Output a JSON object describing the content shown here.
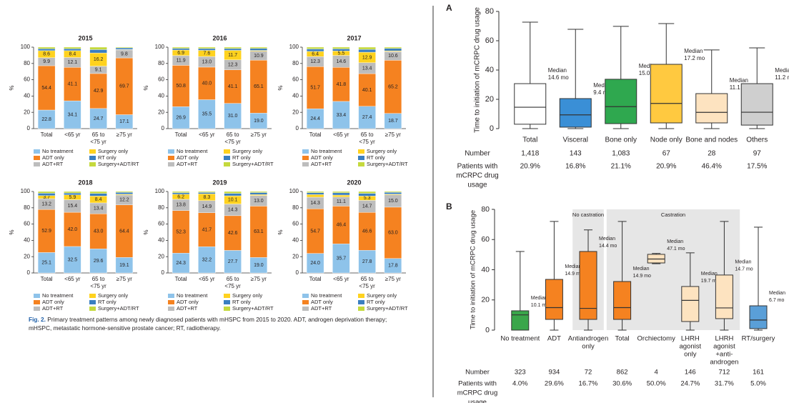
{
  "chart_data": [
    {
      "type": "bar",
      "stacked": true,
      "title": "2015",
      "ylabel": "%",
      "categories": [
        [
          "Total"
        ],
        [
          "<65 yr"
        ],
        [
          "65 to",
          "<75 yr"
        ],
        [
          "≥75 yr"
        ]
      ],
      "ylim": [
        0,
        100
      ],
      "yticks": [
        0,
        20,
        40,
        60,
        80,
        100
      ],
      "series": [
        {
          "name": "No treatment",
          "color": "#8ec3ea",
          "show_labels": true,
          "values": [
            22.8,
            34.1,
            24.7,
            17.1
          ]
        },
        {
          "name": "ADT only",
          "color": "#f58220",
          "show_labels": true,
          "values": [
            54.4,
            41.1,
            42.9,
            69.7
          ]
        },
        {
          "name": "ADT+RT",
          "color": "#bdbdbd",
          "show_labels": true,
          "values": [
            9.9,
            12.1,
            9.1,
            9.8
          ]
        },
        {
          "name": "Surgery only",
          "color": "#ffd21f",
          "show_labels": true,
          "values": [
            8.6,
            8.4,
            16.2,
            0.5
          ]
        },
        {
          "name": "RT only",
          "color": "#3a7fc1",
          "values": [
            2.3,
            2.4,
            4.1,
            2.0
          ]
        },
        {
          "name": "Surgery+ADT/RT",
          "color": "#c5d93d",
          "values": [
            2.0,
            1.9,
            3.0,
            0.9
          ]
        }
      ]
    },
    {
      "type": "bar",
      "stacked": true,
      "title": "2016",
      "ylabel": "%",
      "categories": [
        [
          "Total"
        ],
        [
          "<65 yr"
        ],
        [
          "65 to",
          "<75 yr"
        ],
        [
          "≥75 yr"
        ]
      ],
      "ylim": [
        0,
        100
      ],
      "yticks": [
        0,
        20,
        40,
        60,
        80,
        100
      ],
      "series": [
        {
          "name": "No treatment",
          "color": "#8ec3ea",
          "show_labels": true,
          "values": [
            26.9,
            35.5,
            31.0,
            19.0
          ],
          "value_labels": [
            "26.9",
            "35.5",
            "31.0",
            "19.0"
          ]
        },
        {
          "name": "ADT only",
          "color": "#f58220",
          "show_labels": true,
          "values": [
            50.8,
            40.0,
            41.1,
            65.1
          ],
          "value_labels": [
            "50.8",
            "40.0",
            "41.1",
            "65.1"
          ]
        },
        {
          "name": "ADT+RT",
          "color": "#bdbdbd",
          "show_labels": true,
          "values": [
            11.9,
            13.0,
            12.3,
            10.9
          ],
          "value_labels": [
            "11.9",
            "13.0",
            "12.3",
            "10.9"
          ]
        },
        {
          "name": "Surgery only",
          "color": "#ffd21f",
          "show_labels": true,
          "values": [
            6.9,
            7.6,
            11.7,
            1.0
          ]
        },
        {
          "name": "RT only",
          "color": "#3a7fc1",
          "values": [
            2.0,
            2.2,
            2.2,
            2.5
          ]
        },
        {
          "name": "Surgery+ADT/RT",
          "color": "#c5d93d",
          "values": [
            1.5,
            1.7,
            1.7,
            1.5
          ]
        }
      ]
    },
    {
      "type": "bar",
      "stacked": true,
      "title": "2017",
      "ylabel": "%",
      "categories": [
        [
          "Total"
        ],
        [
          "<65 yr"
        ],
        [
          "65 to",
          "<75 yr"
        ],
        [
          "≥75 yr"
        ]
      ],
      "ylim": [
        0,
        100
      ],
      "yticks": [
        0,
        20,
        40,
        60,
        80,
        100
      ],
      "series": [
        {
          "name": "No treatment",
          "color": "#8ec3ea",
          "show_labels": true,
          "values": [
            24.4,
            33.4,
            27.4,
            18.7
          ]
        },
        {
          "name": "ADT only",
          "color": "#f58220",
          "show_labels": true,
          "values": [
            51.7,
            41.8,
            40.1,
            65.2
          ]
        },
        {
          "name": "ADT+RT",
          "color": "#bdbdbd",
          "show_labels": true,
          "values": [
            12.3,
            14.6,
            13.4,
            10.6
          ]
        },
        {
          "name": "Surgery only",
          "color": "#ffd21f",
          "show_labels": true,
          "values": [
            6.4,
            5.5,
            12.9,
            1.0
          ]
        },
        {
          "name": "RT only",
          "color": "#3a7fc1",
          "values": [
            3.0,
            2.6,
            3.5,
            3.0
          ]
        },
        {
          "name": "Surgery+ADT/RT",
          "color": "#c5d93d",
          "values": [
            2.2,
            2.1,
            2.7,
            1.5
          ]
        }
      ]
    },
    {
      "type": "bar",
      "stacked": true,
      "title": "2018",
      "ylabel": "%",
      "categories": [
        [
          "Total"
        ],
        [
          "<65 yr"
        ],
        [
          "65 to",
          "<75 yr"
        ],
        [
          "≥75 yr"
        ]
      ],
      "ylim": [
        0,
        100
      ],
      "yticks": [
        0,
        20,
        40,
        60,
        80,
        100
      ],
      "series": [
        {
          "name": "No treatment",
          "color": "#8ec3ea",
          "show_labels": true,
          "values": [
            25.1,
            32.5,
            29.6,
            19.1
          ]
        },
        {
          "name": "ADT only",
          "color": "#f58220",
          "show_labels": true,
          "values": [
            52.9,
            42.0,
            43.0,
            64.4
          ],
          "value_labels": [
            "52.9",
            "42.0",
            "43.0",
            "64.4"
          ]
        },
        {
          "name": "ADT+RT",
          "color": "#bdbdbd",
          "show_labels": true,
          "values": [
            13.2,
            15.4,
            13.4,
            12.2
          ]
        },
        {
          "name": "Surgery only",
          "color": "#ffd21f",
          "show_labels": true,
          "values": [
            3.7,
            5.9,
            8.4,
            1.0
          ]
        },
        {
          "name": "RT only",
          "color": "#3a7fc1",
          "values": [
            3.0,
            2.4,
            3.2,
            2.2
          ]
        },
        {
          "name": "Surgery+ADT/RT",
          "color": "#c5d93d",
          "values": [
            2.1,
            1.8,
            2.4,
            1.1
          ]
        }
      ]
    },
    {
      "type": "bar",
      "stacked": true,
      "title": "2019",
      "ylabel": "%",
      "categories": [
        [
          "Total"
        ],
        [
          "<65 yr"
        ],
        [
          "65 to",
          "<75 yr"
        ],
        [
          "≥75 yr"
        ]
      ],
      "ylim": [
        0,
        100
      ],
      "yticks": [
        0,
        20,
        40,
        60,
        80,
        100
      ],
      "series": [
        {
          "name": "No treatment",
          "color": "#8ec3ea",
          "show_labels": true,
          "values": [
            24.3,
            32.2,
            27.7,
            19.0
          ],
          "value_labels": [
            "24.3",
            "32.2",
            "27.7",
            "19.0"
          ]
        },
        {
          "name": "ADT only",
          "color": "#f58220",
          "show_labels": true,
          "values": [
            52.3,
            41.7,
            42.6,
            63.1
          ]
        },
        {
          "name": "ADT+RT",
          "color": "#bdbdbd",
          "show_labels": true,
          "values": [
            13.8,
            14.9,
            14.3,
            13.0
          ],
          "value_labels": [
            "13.8",
            "14.9",
            "14.3",
            "13.0"
          ]
        },
        {
          "name": "Surgery only",
          "color": "#ffd21f",
          "show_labels": true,
          "values": [
            6.2,
            8.3,
            10.1,
            1.2
          ]
        },
        {
          "name": "RT only",
          "color": "#3a7fc1",
          "values": [
            2.0,
            1.7,
            3.0,
            2.4
          ]
        },
        {
          "name": "Surgery+ADT/RT",
          "color": "#c5d93d",
          "values": [
            1.4,
            1.2,
            2.3,
            1.3
          ]
        }
      ]
    },
    {
      "type": "bar",
      "stacked": true,
      "title": "2020",
      "ylabel": "%",
      "categories": [
        [
          "Total"
        ],
        [
          "<65 yr"
        ],
        [
          "65 to",
          "<75 yr"
        ],
        [
          "≥75 yr"
        ]
      ],
      "ylim": [
        0,
        100
      ],
      "yticks": [
        0,
        20,
        40,
        60,
        80,
        100
      ],
      "series": [
        {
          "name": "No treatment",
          "color": "#8ec3ea",
          "show_labels": true,
          "values": [
            24.0,
            35.7,
            27.8,
            17.8
          ],
          "value_labels": [
            "24.0",
            "35.7",
            "27.8",
            "17.8"
          ]
        },
        {
          "name": "ADT only",
          "color": "#f58220",
          "show_labels": true,
          "values": [
            54.7,
            46.4,
            46.6,
            63.0
          ],
          "value_labels": [
            "54.7",
            "46.4",
            "46.6",
            "63.0"
          ]
        },
        {
          "name": "ADT+RT",
          "color": "#bdbdbd",
          "show_labels": true,
          "values": [
            14.3,
            11.1,
            14.7,
            15.0
          ],
          "value_labels": [
            "14.3",
            "11.1",
            "14.7",
            "15.0"
          ]
        },
        {
          "name": "Surgery only",
          "color": "#ffd21f",
          "show_labels": true,
          "values": [
            3.2,
            2.4,
            5.3,
            1.0
          ]
        },
        {
          "name": "RT only",
          "color": "#3a7fc1",
          "values": [
            2.4,
            2.8,
            3.3,
            2.1
          ]
        },
        {
          "name": "Surgery+ADT/RT",
          "color": "#c5d93d",
          "values": [
            1.4,
            1.6,
            2.3,
            1.1
          ]
        }
      ]
    },
    {
      "type": "box",
      "panel": "A",
      "ylabel": "Time to initiation of mCRPC drug usage",
      "categories": [
        [
          "Total"
        ],
        [
          "Visceral"
        ],
        [
          "Bone only"
        ],
        [
          "Node only"
        ],
        [
          "Bone and nodes"
        ],
        [
          "Others"
        ]
      ],
      "whisker_low": [
        0,
        0,
        0,
        0,
        0,
        0
      ],
      "q1": [
        3,
        1,
        3.4,
        3.9,
        3.9,
        2.4
      ],
      "median": [
        14.6,
        9.4,
        15.0,
        17.2,
        11.1,
        11.2
      ],
      "q3": [
        30.7,
        20.5,
        33.7,
        43.9,
        23.9,
        30.7
      ],
      "whisker_high": [
        72.7,
        67.8,
        69.8,
        71.7,
        53.7,
        55.1
      ],
      "colors": [
        "#ffffff",
        "#3a8fd6",
        "#2fa84f",
        "#ffc940",
        "#fde3c0",
        "#cfcfcf"
      ],
      "median_word": "Median",
      "median_labels": [
        "14.6 mo",
        "9.4 mo",
        "15.0 mo",
        "17.2 mo",
        "11.1 mo",
        "11.2 mo"
      ],
      "ylim": [
        0,
        80
      ],
      "yticks": [
        0,
        20,
        40,
        60,
        80
      ],
      "table": [
        {
          "label": [
            "Number"
          ],
          "cells": [
            "1,418",
            "143",
            "1,083",
            "67",
            "28",
            "97"
          ]
        },
        {
          "label": [
            "Patients with",
            "mCRPC drug",
            "usage"
          ],
          "cells": [
            "20.9%",
            "16.8%",
            "21.1%",
            "20.9%",
            "46.4%",
            "17.5%"
          ]
        }
      ]
    },
    {
      "type": "box",
      "panel": "B",
      "ylabel": "Time to initiation of mCRPC drug usage",
      "categories": [
        [
          "No treatment"
        ],
        [
          "ADT"
        ],
        [
          "Antiandrogen",
          "only"
        ],
        [
          "Total"
        ],
        [
          "Orchiectomy"
        ],
        [
          "LHRH",
          "agonist",
          "only"
        ],
        [
          "LHRH",
          "agonist",
          "+anti-",
          "androgen"
        ],
        [
          "RT/surgery"
        ]
      ],
      "regions": [
        {
          "label": "No castration",
          "from": 2,
          "to": 2
        },
        {
          "label": "Castration",
          "from": 3,
          "to": 6
        }
      ],
      "whisker_low": [
        0,
        0,
        0,
        0,
        44.0,
        0,
        0,
        0
      ],
      "q1": [
        0,
        7.1,
        7.1,
        7.1,
        44.5,
        5.7,
        7.6,
        1
      ],
      "median": [
        10.1,
        14.9,
        14.4,
        14.9,
        47.1,
        19.7,
        14.7,
        6.7
      ],
      "q3": [
        12.8,
        33.6,
        52.1,
        32.2,
        50.2,
        28.9,
        36.5,
        16.1
      ],
      "whisker_high": [
        52.1,
        72,
        66.4,
        72,
        50.8,
        51.2,
        72,
        68.2
      ],
      "colors": [
        "#3aa64a",
        "#f58220",
        "#f58220",
        "#f58220",
        "#fde3c0",
        "#fde3c0",
        "#fde3c0",
        "#5a9fd8"
      ],
      "median_word": "Median",
      "median_labels": [
        "10.1 mo",
        "14.9 mo",
        "14.4 mo",
        "14.9 mo",
        "47.1 mo",
        "19.7 mo",
        "14.7 mo",
        "6.7 mo"
      ],
      "ylim": [
        0,
        80
      ],
      "yticks": [
        0,
        20,
        40,
        60,
        80
      ],
      "table": [
        {
          "label": [
            "Number"
          ],
          "cells": [
            "323",
            "934",
            "72",
            "862",
            "4",
            "146",
            "712",
            "161"
          ]
        },
        {
          "label": [
            "Patients with",
            "mCRPC drug",
            "usage"
          ],
          "cells": [
            "4.0%",
            "29.6%",
            "16.7%",
            "30.6%",
            "50.0%",
            "24.7%",
            "31.7%",
            "5.0%"
          ]
        }
      ]
    }
  ],
  "caption": {
    "label": "Fig. 2.",
    "text": "Primary treatment patterns among newly diagnosed patients with mHSPC from 2015 to 2020. ADT, androgen deprivation therapy; mHSPC, metastatic hormone-sensitive prostate cancer; RT, radiotherapy."
  }
}
